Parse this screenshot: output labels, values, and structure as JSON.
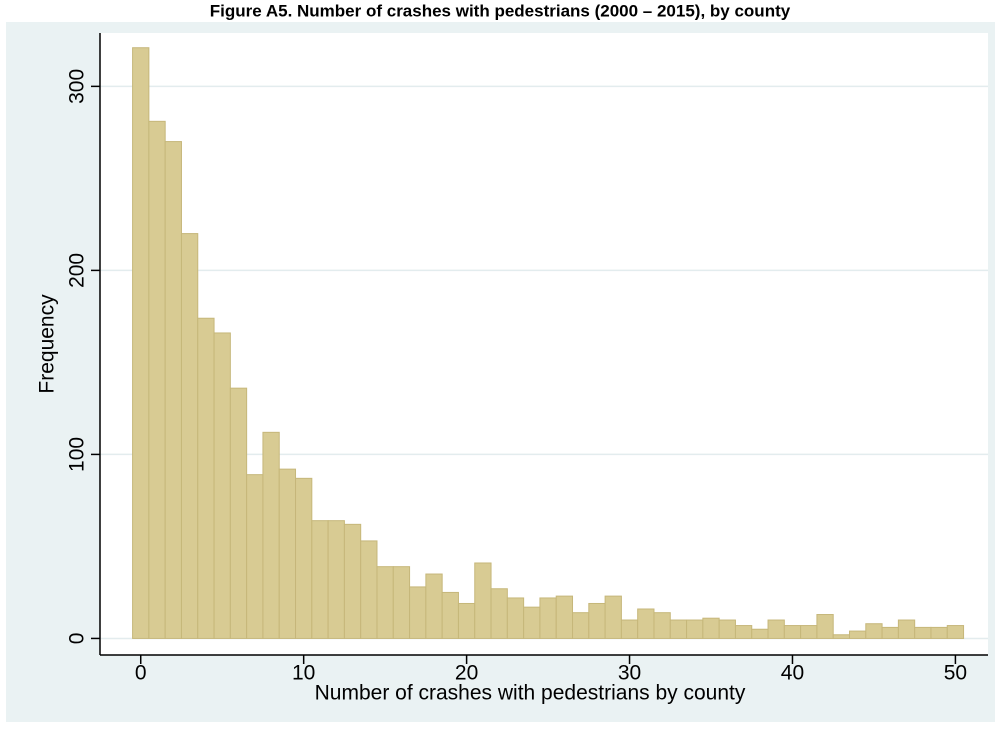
{
  "chart_data": {
    "type": "histogram",
    "title": "Figure A5. Number of crashes with pedestrians (2000 – 2015), by county",
    "xlabel": "Number of crashes with pedestrians by county",
    "ylabel": "Frequency",
    "bins": [
      -0.5,
      0.5,
      1.5,
      2.5,
      3.5,
      4.5,
      5.5,
      6.5,
      7.5,
      8.5,
      9.5,
      10.5,
      11.5,
      12.5,
      13.5,
      14.5,
      15.5,
      16.5,
      17.5,
      18.5,
      19.5,
      20.5,
      21.5,
      22.5,
      23.5,
      24.5,
      25.5,
      26.5,
      27.5,
      28.5,
      29.5,
      30.5,
      31.5,
      32.5,
      33.5,
      34.5,
      35.5,
      36.5,
      37.5,
      38.5,
      39.5,
      40.5,
      41.5,
      42.5,
      43.5,
      44.5,
      45.5,
      46.5,
      47.5,
      48.5,
      49.5,
      50.5
    ],
    "values": [
      321,
      281,
      270,
      220,
      174,
      166,
      136,
      89,
      112,
      92,
      87,
      64,
      64,
      62,
      53,
      39,
      39,
      28,
      35,
      25,
      19,
      41,
      27,
      22,
      17,
      22,
      23,
      14,
      19,
      23,
      10,
      16,
      14,
      10,
      10,
      11,
      10,
      7,
      5,
      10,
      7,
      7,
      13,
      2,
      4,
      8,
      6,
      10,
      6,
      6,
      7
    ],
    "color": "#d8cb93",
    "xlim": [
      -2.5,
      52
    ],
    "ylim": [
      -9,
      329
    ],
    "xticks": [
      0,
      10,
      20,
      30,
      40,
      50
    ],
    "yticks": [
      0,
      100,
      200,
      300
    ],
    "grid": true
  }
}
